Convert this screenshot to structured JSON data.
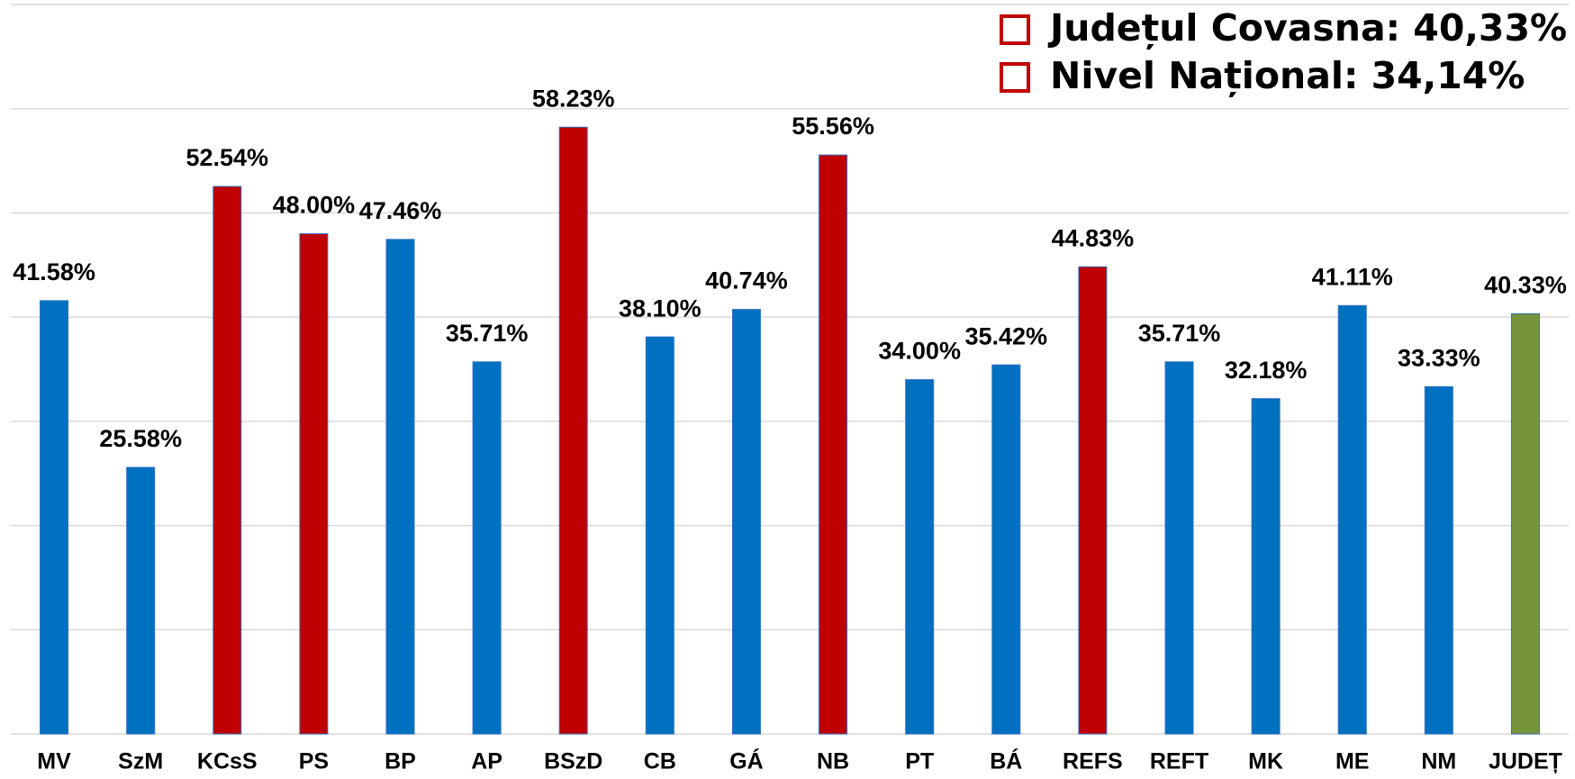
{
  "chart_data": {
    "type": "bar",
    "categories": [
      "MV",
      "SzM",
      "KCsS",
      "PS",
      "BP",
      "AP",
      "BSzD",
      "CB",
      "GÁ",
      "NB",
      "PT",
      "BÁ",
      "REFS",
      "REFT",
      "MK",
      "ME",
      "NM",
      "JUDEȚ"
    ],
    "values": [
      41.58,
      25.58,
      52.54,
      48.0,
      47.46,
      35.71,
      58.23,
      38.1,
      40.74,
      55.56,
      34.0,
      35.42,
      44.83,
      35.71,
      32.18,
      41.11,
      33.33,
      40.33
    ],
    "value_labels": [
      "41.58%",
      "25.58%",
      "52.54%",
      "48.00%",
      "47.46%",
      "35.71%",
      "58.23%",
      "38.10%",
      "40.74%",
      "55.56%",
      "34.00%",
      "35.42%",
      "44.83%",
      "35.71%",
      "32.18%",
      "41.11%",
      "33.33%",
      "40.33%"
    ],
    "colors": [
      "#0070c0",
      "#0070c0",
      "#c00000",
      "#c00000",
      "#0070c0",
      "#0070c0",
      "#c00000",
      "#0070c0",
      "#0070c0",
      "#c00000",
      "#0070c0",
      "#0070c0",
      "#c00000",
      "#0070c0",
      "#0070c0",
      "#0070c0",
      "#0070c0",
      "#77933c"
    ],
    "ylim": [
      0,
      70
    ],
    "yticks": [
      0,
      10,
      20,
      30,
      40,
      50,
      60,
      70
    ],
    "grid": true,
    "annotations": [
      "Județul Covasna: 40,33%",
      "Nivel Național: 34,14%"
    ]
  }
}
